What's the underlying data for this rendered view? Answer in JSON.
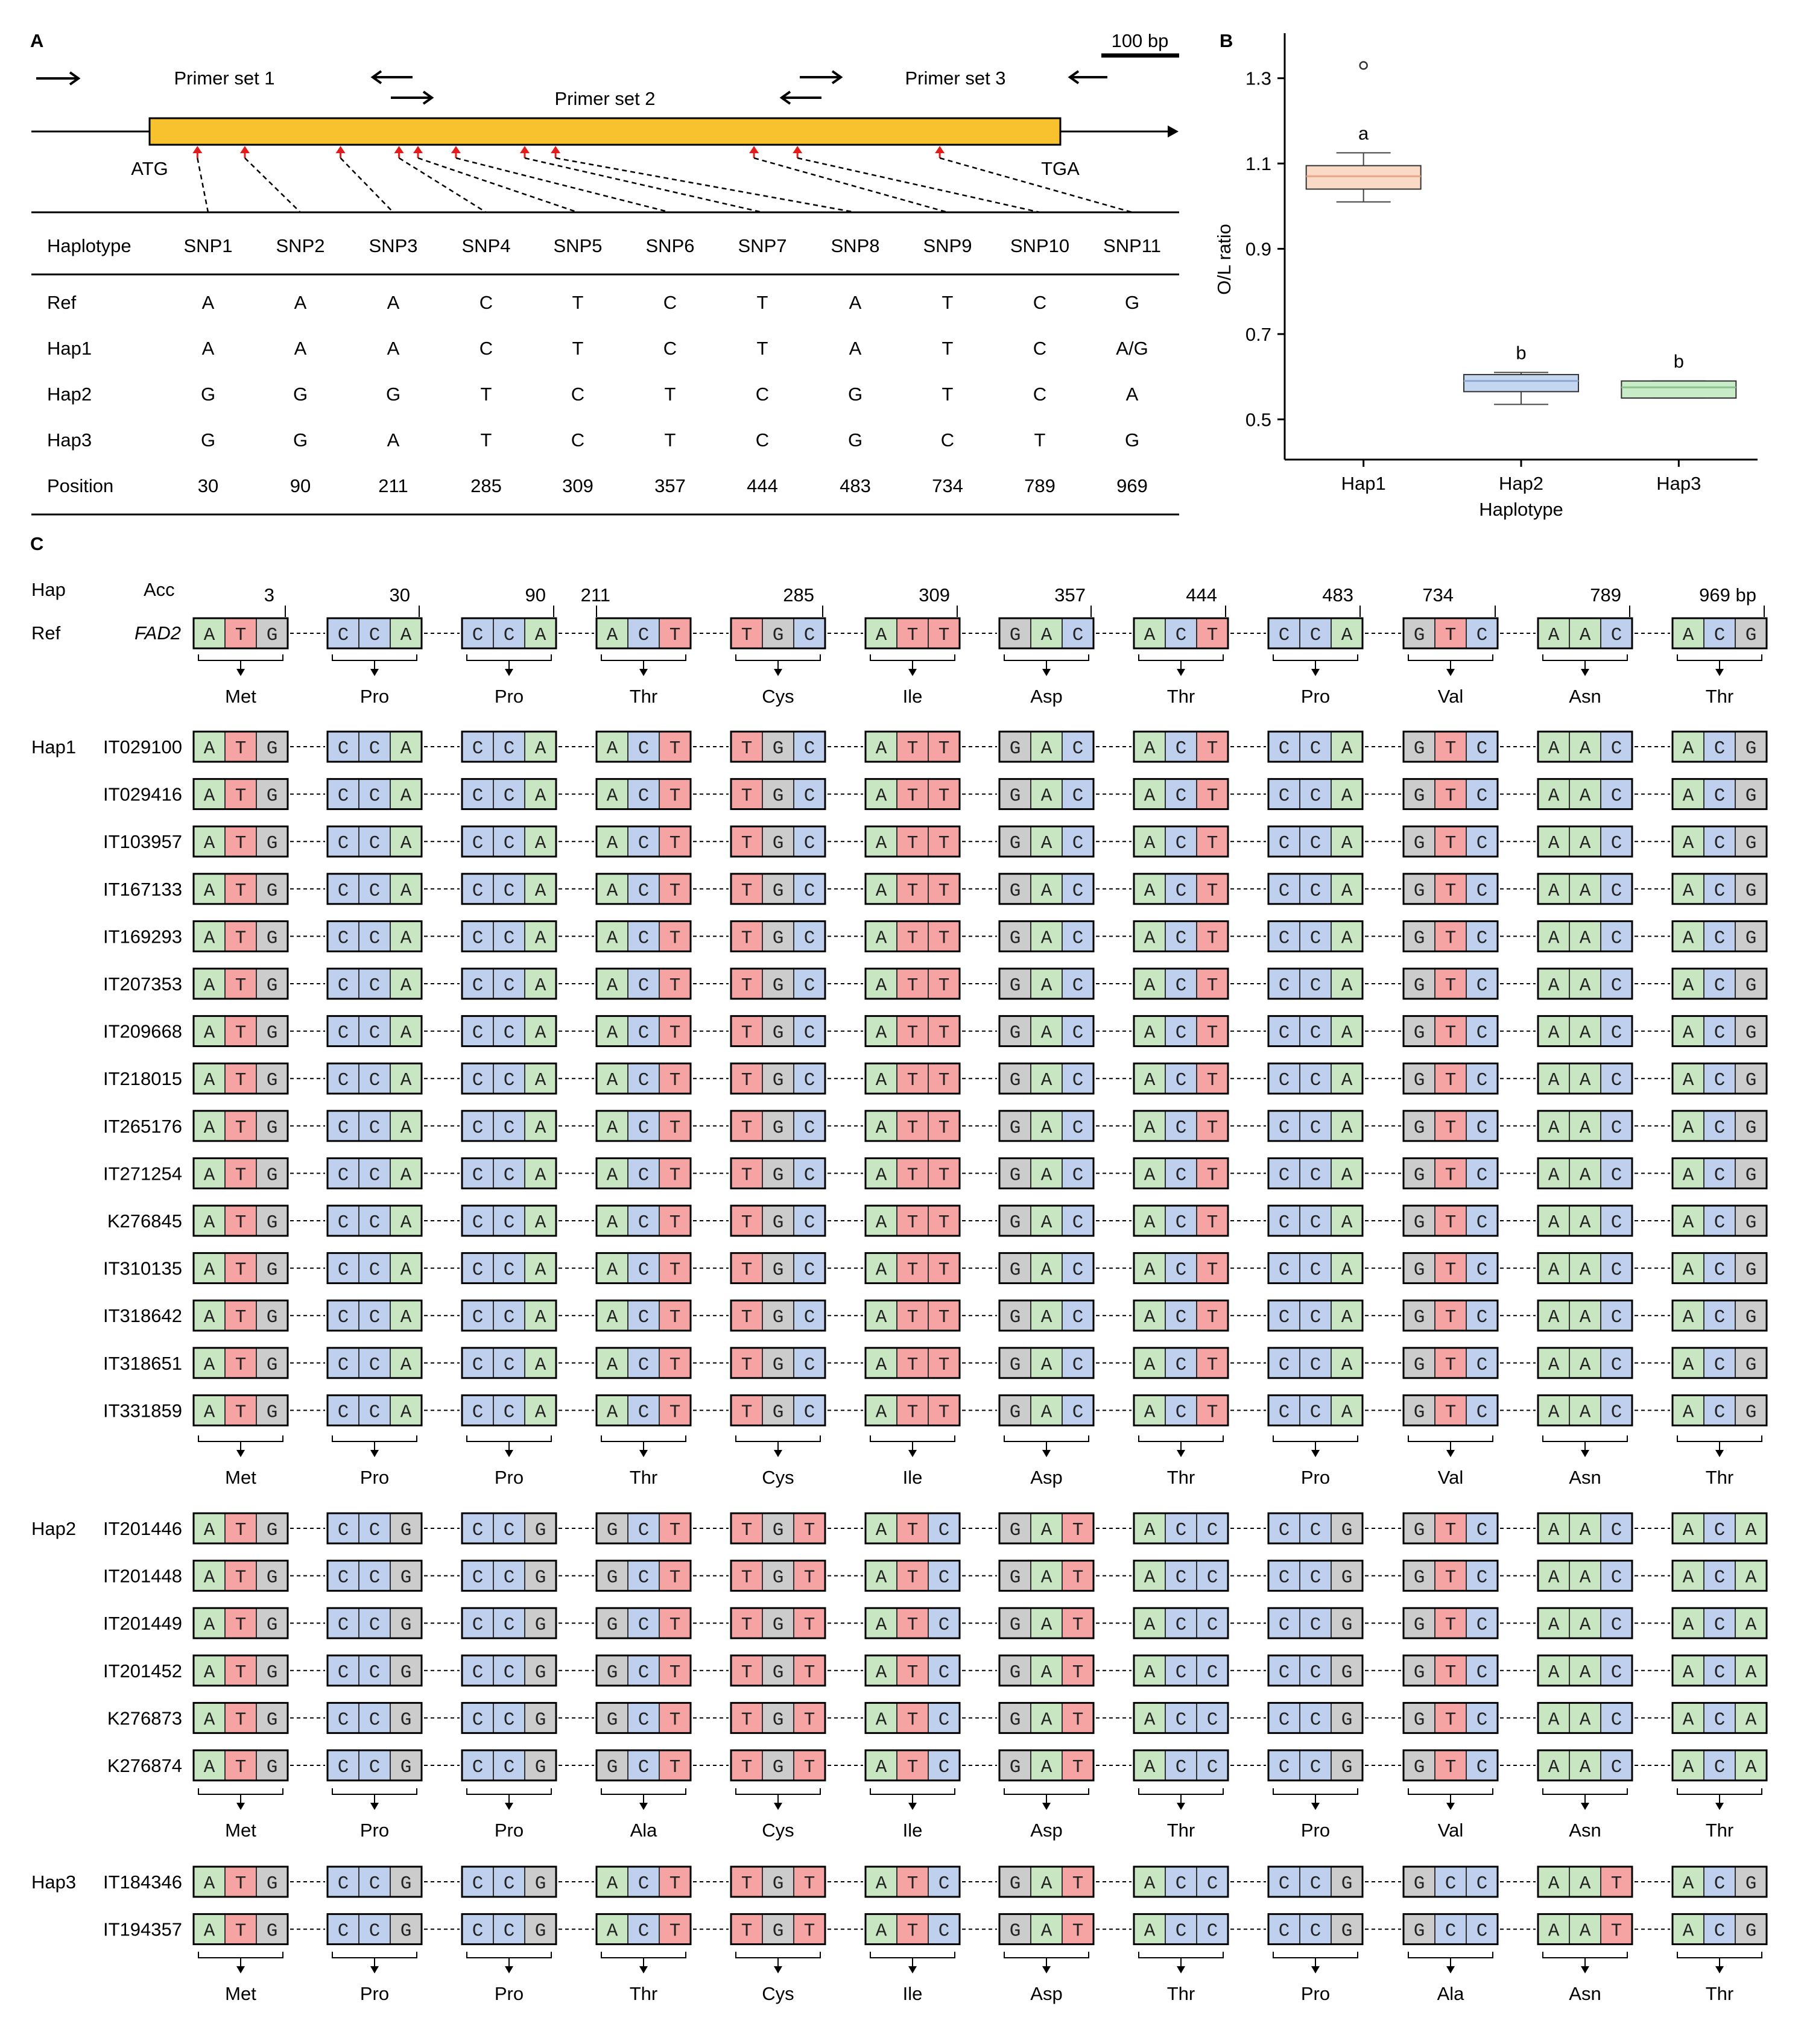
{
  "figure": {
    "panel_labels": [
      "A",
      "B",
      "C"
    ],
    "panelA": {
      "scale_label": "100 bp",
      "primer_labels": [
        "Primer set 1",
        "Primer set 2",
        "Primer set 3"
      ],
      "start_codon": "ATG",
      "stop_codon": "TGA",
      "table": {
        "header": [
          "Haplotype",
          "SNP1",
          "SNP2",
          "SNP3",
          "SNP4",
          "SNP5",
          "SNP6",
          "SNP7",
          "SNP8",
          "SNP9",
          "SNP10",
          "SNP11"
        ],
        "rows": [
          [
            "Ref",
            "A",
            "A",
            "A",
            "C",
            "T",
            "C",
            "T",
            "A",
            "T",
            "C",
            "G"
          ],
          [
            "Hap1",
            "A",
            "A",
            "A",
            "C",
            "T",
            "C",
            "T",
            "A",
            "T",
            "C",
            "A/G"
          ],
          [
            "Hap2",
            "G",
            "G",
            "G",
            "T",
            "C",
            "T",
            "C",
            "G",
            "T",
            "C",
            "A"
          ],
          [
            "Hap3",
            "G",
            "G",
            "A",
            "T",
            "C",
            "T",
            "C",
            "G",
            "C",
            "T",
            "G"
          ],
          [
            "Position",
            "30",
            "90",
            "211",
            "285",
            "309",
            "357",
            "444",
            "483",
            "734",
            "789",
            "969"
          ]
        ]
      }
    },
    "panelC": {
      "col_headers": [
        "Hap",
        "Acc"
      ],
      "positions": [
        "3",
        "30",
        "90",
        "211",
        "285",
        "309",
        "357",
        "444",
        "483",
        "734",
        "789",
        "969 bp"
      ],
      "ref_row": {
        "label": "Ref",
        "gene": "FAD2"
      },
      "codon_sets": {
        "ref": [
          "ATG",
          "CCA",
          "CCA",
          "ACT",
          "TGC",
          "ATT",
          "GAC",
          "ACT",
          "CCA",
          "GTC",
          "AAC",
          "ACG"
        ],
        "hap1": [
          "ATG",
          "CCA",
          "CCA",
          "ACT",
          "TGC",
          "ATT",
          "GAC",
          "ACT",
          "CCA",
          "GTC",
          "AAC",
          "ACG"
        ],
        "hap2": [
          "ATG",
          "CCG",
          "CCG",
          "GCT",
          "TGT",
          "ATC",
          "GAT",
          "ACC",
          "CCG",
          "GTC",
          "AAC",
          "ACA"
        ],
        "hap3": [
          "ATG",
          "CCG",
          "CCG",
          "ACT",
          "TGT",
          "ATC",
          "GAT",
          "ACC",
          "CCG",
          "GCC",
          "AAT",
          "ACG"
        ]
      },
      "aa_sets": {
        "ref": [
          "Met",
          "Pro",
          "Pro",
          "Thr",
          "Cys",
          "Ile",
          "Asp",
          "Thr",
          "Pro",
          "Val",
          "Asn",
          "Thr"
        ],
        "hap1": [
          "Met",
          "Pro",
          "Pro",
          "Thr",
          "Cys",
          "Ile",
          "Asp",
          "Thr",
          "Pro",
          "Val",
          "Asn",
          "Thr"
        ],
        "hap2": [
          "Met",
          "Pro",
          "Pro",
          "Ala",
          "Cys",
          "Ile",
          "Asp",
          "Thr",
          "Pro",
          "Val",
          "Asn",
          "Thr"
        ],
        "hap3": [
          "Met",
          "Pro",
          "Pro",
          "Thr",
          "Cys",
          "Ile",
          "Asp",
          "Thr",
          "Pro",
          "Ala",
          "Asn",
          "Thr"
        ]
      },
      "groups": [
        {
          "hap": "Hap1",
          "codons": "hap1",
          "accessions": [
            "IT029100",
            "IT029416",
            "IT103957",
            "IT167133",
            "IT169293",
            "IT207353",
            "IT209668",
            "IT218015",
            "IT265176",
            "IT271254",
            "K276845",
            "IT310135",
            "IT318642",
            "IT318651",
            "IT331859"
          ]
        },
        {
          "hap": "Hap2",
          "codons": "hap2",
          "accessions": [
            "IT201446",
            "IT201448",
            "IT201449",
            "IT201452",
            "K276873",
            "K276874"
          ]
        },
        {
          "hap": "Hap3",
          "codons": "hap3",
          "accessions": [
            "IT184346",
            "IT194357"
          ]
        }
      ],
      "base_colors": {
        "A": "#c7e6c1",
        "C": "#bfd0ee",
        "G": "#cccccc",
        "T": "#f5a3a3"
      }
    }
  },
  "chart_data": {
    "type": "box",
    "title": "",
    "xlabel": "Haplotype",
    "ylabel": "O/L ratio",
    "categories": [
      "Hap1",
      "Hap2",
      "Hap3"
    ],
    "ylim": [
      0.4,
      1.4
    ],
    "yticks": [
      0.5,
      0.7,
      0.9,
      1.1,
      1.3
    ],
    "boxes": [
      {
        "name": "Hap1",
        "whisker_low": 1.01,
        "q1": 1.04,
        "median": 1.07,
        "q3": 1.095,
        "whisker_high": 1.125,
        "outliers": [
          1.33
        ],
        "letter": "a",
        "fill": "#fad9c6",
        "stroke": "#e8a585"
      },
      {
        "name": "Hap2",
        "whisker_low": 0.535,
        "q1": 0.565,
        "median": 0.59,
        "q3": 0.605,
        "whisker_high": 0.61,
        "outliers": [],
        "letter": "b",
        "fill": "#c5d7f0",
        "stroke": "#8fa8d0"
      },
      {
        "name": "Hap3",
        "whisker_low": 0.55,
        "q1": 0.55,
        "median": 0.575,
        "q3": 0.59,
        "whisker_high": 0.59,
        "outliers": [],
        "letter": "b",
        "fill": "#c8ecc8",
        "stroke": "#8cc08c"
      }
    ],
    "grid": false,
    "legend": "none"
  }
}
